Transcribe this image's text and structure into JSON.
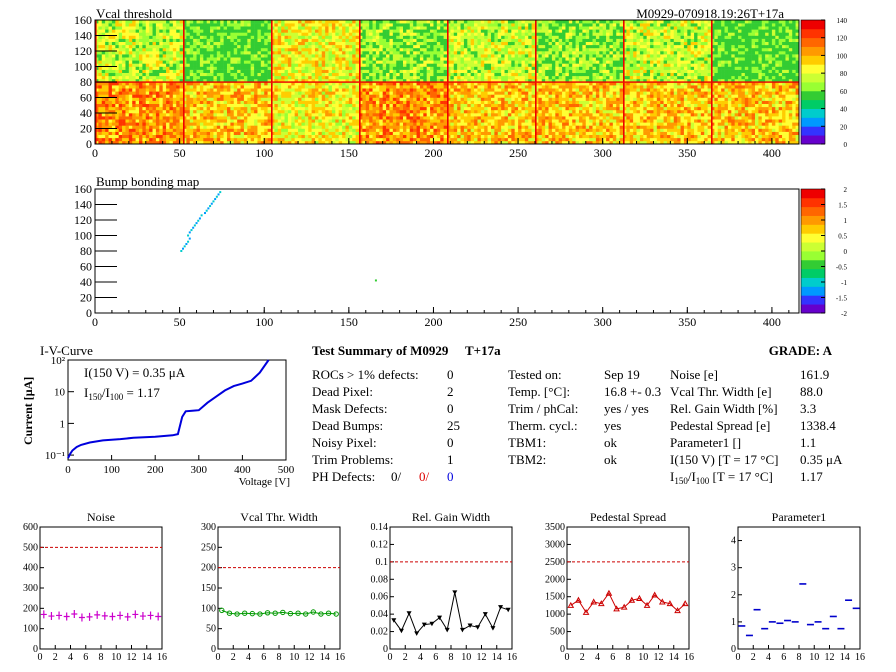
{
  "header": {
    "map_title": "Vcal threshold",
    "module_id": "M0929-070918.19:26T+17a",
    "bump_title": "Bump bonding map"
  },
  "palette": {
    "colors": [
      "#6600cc",
      "#3333ff",
      "#0099ff",
      "#00cccc",
      "#00cc66",
      "#33cc33",
      "#99ff33",
      "#ccff33",
      "#ffff33",
      "#ffcc00",
      "#ff9900",
      "#ff6600",
      "#ff3300",
      "#ee0000"
    ]
  },
  "iv": {
    "title": "I-V-Curve",
    "annot1": "I(150 V) = 0.35 μA",
    "annot2_prefix": "I",
    "annot2_sub1": "150",
    "annot2_mid": "/I",
    "annot2_sub2": "100",
    "annot2_suffix": " =  1.17",
    "ylabel": "Current [μA]",
    "xlabel": "Voltage [V]"
  },
  "summary": {
    "title": "Test Summary of M0929",
    "suffix": "T+17a",
    "grade_label": "GRADE:  A",
    "rows": [
      {
        "label": "ROCs > 1% defects:",
        "value": "0"
      },
      {
        "label": "Dead Pixel:",
        "value": "2"
      },
      {
        "label": "Mask Defects:",
        "value": "0"
      },
      {
        "label": "Dead Bumps:",
        "value": "25"
      },
      {
        "label": "Noisy Pixel:",
        "value": "0"
      },
      {
        "label": "Trim Problems:",
        "value": "1"
      }
    ],
    "ph_label": "PH Defects:",
    "ph_values": [
      "0/",
      "0/",
      "0"
    ],
    "test_rows": [
      {
        "label": "Tested on:",
        "value": "Sep 19"
      },
      {
        "label": "Temp. [°C]:",
        "value": "16.8 +- 0.3"
      },
      {
        "label": "Trim / phCal:",
        "value": "yes / yes"
      },
      {
        "label": "Therm. cycl.:",
        "value": "yes"
      },
      {
        "label": "TBM1:",
        "value": "ok"
      },
      {
        "label": "TBM2:",
        "value": "ok"
      }
    ],
    "param_rows": [
      {
        "label": "Noise [e]",
        "value": "161.9"
      },
      {
        "label": "Vcal Thr. Width [e]",
        "value": "88.0"
      },
      {
        "label": "Rel. Gain Width [%]",
        "value": "3.3"
      },
      {
        "label": "Pedestal Spread [e]",
        "value": "1338.4"
      },
      {
        "label": "Parameter1 []",
        "value": "1.1"
      },
      {
        "label": "I(150 V) [T = 17 °C]",
        "value": "0.35 μA"
      }
    ],
    "ratio_row": {
      "prefix": "I",
      "sub1": "150",
      "mid": "/I",
      "sub2": "100",
      "suffix": "  [T = 17 °C]",
      "value": "1.17"
    }
  },
  "chart_data": [
    {
      "type": "heatmap",
      "title": "Vcal threshold",
      "x_range": [
        0,
        416
      ],
      "y_range": [
        0,
        160
      ],
      "x_ticks": [
        0,
        50,
        100,
        150,
        200,
        250,
        300,
        350,
        400
      ],
      "y_ticks": [
        0,
        20,
        40,
        60,
        80,
        100,
        120,
        140,
        160
      ],
      "z_range": [
        0,
        140
      ],
      "z_ticks": [
        0,
        20,
        40,
        60,
        80,
        100,
        120,
        140
      ],
      "blocks_top": [
        7,
        5,
        8,
        6,
        7,
        6,
        7,
        5
      ],
      "blocks_bottom": [
        10,
        9,
        8,
        10,
        9,
        9,
        9,
        9
      ]
    },
    {
      "type": "scatter",
      "title": "Bump bonding map",
      "x_range": [
        0,
        416
      ],
      "y_range": [
        0,
        160
      ],
      "x_ticks": [
        0,
        50,
        100,
        150,
        200,
        250,
        300,
        350,
        400
      ],
      "y_ticks": [
        0,
        20,
        40,
        60,
        80,
        100,
        120,
        140,
        160
      ],
      "z_range": [
        -2,
        2
      ],
      "z_ticks": [
        "2",
        "1.5",
        "1",
        "0.5",
        "0",
        "-0.5",
        "-1",
        "-1.5",
        "-2"
      ],
      "points": [
        [
          51,
          80
        ],
        [
          52,
          83
        ],
        [
          53,
          86
        ],
        [
          54,
          89
        ],
        [
          55,
          92
        ],
        [
          56,
          96
        ],
        [
          55,
          100
        ],
        [
          56,
          104
        ],
        [
          57,
          107
        ],
        [
          58,
          110
        ],
        [
          59,
          113
        ],
        [
          60,
          116
        ],
        [
          61,
          119
        ],
        [
          62,
          122
        ],
        [
          63,
          126
        ],
        [
          65,
          129
        ],
        [
          66,
          132
        ],
        [
          67,
          135
        ],
        [
          68,
          138
        ],
        [
          69,
          141
        ],
        [
          70,
          144
        ],
        [
          71,
          147
        ],
        [
          72,
          150
        ],
        [
          73,
          153
        ],
        [
          74,
          156
        ],
        [
          166,
          42
        ]
      ]
    },
    {
      "type": "line",
      "title": "I-V-Curve",
      "xlabel": "Voltage [V]",
      "ylabel": "Current [μA]",
      "x_range": [
        0,
        500
      ],
      "y_range": [
        0.07,
        100
      ],
      "y_scale": "log",
      "x_ticks": [
        0,
        100,
        200,
        300,
        400,
        500
      ],
      "y_tick_labels": [
        "10⁻¹",
        "1",
        "10",
        "10²"
      ],
      "points": [
        [
          0,
          0.08
        ],
        [
          5,
          0.11
        ],
        [
          10,
          0.14
        ],
        [
          20,
          0.18
        ],
        [
          30,
          0.21
        ],
        [
          50,
          0.25
        ],
        [
          80,
          0.29
        ],
        [
          120,
          0.32
        ],
        [
          150,
          0.35
        ],
        [
          200,
          0.38
        ],
        [
          240,
          0.42
        ],
        [
          252,
          0.46
        ],
        [
          262,
          1.6
        ],
        [
          270,
          2.4
        ],
        [
          285,
          2.5
        ],
        [
          300,
          2.6
        ],
        [
          320,
          4.5
        ],
        [
          340,
          7
        ],
        [
          360,
          11
        ],
        [
          380,
          15
        ],
        [
          400,
          18
        ],
        [
          420,
          22
        ],
        [
          440,
          40
        ],
        [
          460,
          100
        ]
      ]
    },
    {
      "type": "scatter",
      "title": "Noise",
      "x_range": [
        0,
        16
      ],
      "y_range": [
        0,
        600
      ],
      "x_ticks": [
        0,
        2,
        4,
        6,
        8,
        10,
        12,
        14,
        16
      ],
      "y_ticks": [
        0,
        100,
        200,
        300,
        400,
        500,
        600
      ],
      "reference_line": 500,
      "color": "#cc00cc",
      "values": [
        170,
        162,
        165,
        160,
        172,
        155,
        158,
        168,
        163,
        160,
        165,
        158,
        170,
        162,
        165,
        160
      ]
    },
    {
      "type": "line",
      "title": "Vcal Thr. Width",
      "x_range": [
        0,
        16
      ],
      "y_range": [
        0,
        300
      ],
      "x_ticks": [
        0,
        2,
        4,
        6,
        8,
        10,
        12,
        14,
        16
      ],
      "y_ticks": [
        0,
        50,
        100,
        150,
        200,
        250,
        300
      ],
      "reference_line": 200,
      "color": "#009900",
      "values": [
        95,
        88,
        86,
        88,
        87,
        86,
        89,
        88,
        90,
        87,
        88,
        86,
        91,
        86,
        88,
        86
      ]
    },
    {
      "type": "line",
      "title": "Rel. Gain Width",
      "x_range": [
        0,
        16
      ],
      "y_range": [
        0,
        0.14
      ],
      "x_ticks": [
        0,
        2,
        4,
        6,
        8,
        10,
        12,
        14,
        16
      ],
      "y_ticks": [
        0,
        0.02,
        0.04,
        0.06,
        0.08,
        0.1,
        0.12,
        0.14
      ],
      "reference_line": 0.1,
      "color": "#000000",
      "values": [
        0.033,
        0.021,
        0.041,
        0.018,
        0.028,
        0.029,
        0.036,
        0.022,
        0.065,
        0.022,
        0.027,
        0.025,
        0.04,
        0.024,
        0.048,
        0.045
      ]
    },
    {
      "type": "line",
      "title": "Pedestal Spread",
      "x_range": [
        0,
        16
      ],
      "y_range": [
        0,
        3500
      ],
      "x_ticks": [
        0,
        2,
        4,
        6,
        8,
        10,
        12,
        14,
        16
      ],
      "y_ticks": [
        0,
        500,
        1000,
        1500,
        2000,
        2500,
        3000,
        3500
      ],
      "reference_line": 2500,
      "color": "#cc0000",
      "values": [
        1250,
        1400,
        1050,
        1350,
        1300,
        1600,
        1150,
        1200,
        1400,
        1450,
        1250,
        1550,
        1350,
        1300,
        1100,
        1300
      ]
    },
    {
      "type": "scatter",
      "title": "Parameter1",
      "x_range": [
        0,
        16
      ],
      "y_range": [
        0,
        4.5
      ],
      "x_ticks": [
        0,
        2,
        4,
        6,
        8,
        10,
        12,
        14,
        16
      ],
      "y_ticks": [
        0,
        1,
        2,
        3,
        4
      ],
      "color": "#0000cc",
      "values": [
        0.85,
        0.5,
        1.45,
        0.75,
        1.0,
        0.95,
        1.05,
        1.0,
        2.4,
        0.9,
        1.0,
        0.75,
        1.2,
        0.75,
        1.8,
        1.5
      ]
    }
  ]
}
